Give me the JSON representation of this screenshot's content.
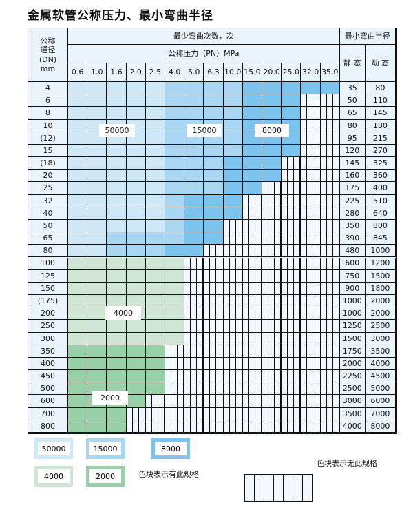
{
  "title": "金属软管公称压力、最小弯曲半径",
  "header": {
    "dn": "公称\n通径\n(DN)\nmm",
    "cycles": "最少弯曲次数，次",
    "pressure": "公称压力（PN）MPa",
    "radius": "最小弯曲半径",
    "static": "静 态",
    "dynamic": "动 态",
    "pressures": [
      "0.6",
      "1.0",
      "1.6",
      "2.0",
      "2.5",
      "4.0",
      "5.0",
      "6.3",
      "10.0",
      "15.0",
      "20.0",
      "25.0",
      "32.0",
      "35.0"
    ]
  },
  "colors": {
    "50000": "#cfe8f8",
    "15000": "#a9d7f3",
    "8000": "#7cc4ee",
    "4000": "#cfe6d4",
    "2000": "#98d0a8",
    "none": "hatched"
  },
  "rows": [
    {
      "dn": "4",
      "s": "35",
      "d": "80",
      "cells": "LLLLLMMMMSSSSS"
    },
    {
      "dn": "6",
      "s": "50",
      "d": "110",
      "cells": "LLLLLMMMMSSS--"
    },
    {
      "dn": "8",
      "s": "65",
      "d": "145",
      "cells": "LLLLLMMMMSSS--"
    },
    {
      "dn": "10",
      "s": "80",
      "d": "180",
      "cells": "LLLLLMMMMSSS--"
    },
    {
      "dn": "(12)",
      "s": "95",
      "d": "215",
      "cells": "LLLLLMMMMSSS--"
    },
    {
      "dn": "15",
      "s": "120",
      "d": "270",
      "cells": "LLLLLMMMMSSS--"
    },
    {
      "dn": "(18)",
      "s": "145",
      "d": "325",
      "cells": "LLLLLMMMSSS---"
    },
    {
      "dn": "20",
      "s": "160",
      "d": "360",
      "cells": "LLLLLMMMSSS---"
    },
    {
      "dn": "25",
      "s": "175",
      "d": "400",
      "cells": "LLLLLMMMSS----"
    },
    {
      "dn": "32",
      "s": "225",
      "d": "510",
      "cells": "LLLLLMSSS-----"
    },
    {
      "dn": "40",
      "s": "280",
      "d": "640",
      "cells": "LLLLLMSSS-----"
    },
    {
      "dn": "50",
      "s": "350",
      "d": "800",
      "cells": "LLLLLMSS------"
    },
    {
      "dn": "65",
      "s": "390",
      "d": "845",
      "cells": "LLMMMMSS------"
    },
    {
      "dn": "80",
      "s": "480",
      "d": "1000",
      "cells": "LLMMMSS-------"
    },
    {
      "dn": "100",
      "s": "600",
      "d": "1200",
      "cells": "GGGGGG--------"
    },
    {
      "dn": "125",
      "s": "750",
      "d": "1500",
      "cells": "GGGGGG--------"
    },
    {
      "dn": "150",
      "s": "900",
      "d": "1800",
      "cells": "GGGGGG--------"
    },
    {
      "dn": "(175)",
      "s": "1000",
      "d": "2000",
      "cells": "GGGGGG--------"
    },
    {
      "dn": "200",
      "s": "1000",
      "d": "2000",
      "cells": "GGGGGG--------"
    },
    {
      "dn": "250",
      "s": "1250",
      "d": "2500",
      "cells": "GGGGGG--------"
    },
    {
      "dn": "300",
      "s": "1500",
      "d": "3000",
      "cells": "GGGGGG--------"
    },
    {
      "dn": "350",
      "s": "1750",
      "d": "3500",
      "cells": "DDDDD---------"
    },
    {
      "dn": "400",
      "s": "2000",
      "d": "4000",
      "cells": "DDDDD---------"
    },
    {
      "dn": "450",
      "s": "2250",
      "d": "4500",
      "cells": "DDDDD---------"
    },
    {
      "dn": "500",
      "s": "2500",
      "d": "5000",
      "cells": "DDDDD---------"
    },
    {
      "dn": "600",
      "s": "3000",
      "d": "6000",
      "cells": "DDDD----------"
    },
    {
      "dn": "700",
      "s": "3500",
      "d": "7000",
      "cells": "DDD-----------"
    },
    {
      "dn": "800",
      "s": "4000",
      "d": "8000",
      "cells": "DDD-----------"
    }
  ],
  "region_labels": [
    "50000",
    "15000",
    "8000",
    "4000",
    "2000"
  ],
  "legend": {
    "items": [
      "50000",
      "15000",
      "8000",
      "4000",
      "2000"
    ],
    "has_spec": "色块表示有此规格",
    "no_spec": "色块表示无此规格"
  }
}
